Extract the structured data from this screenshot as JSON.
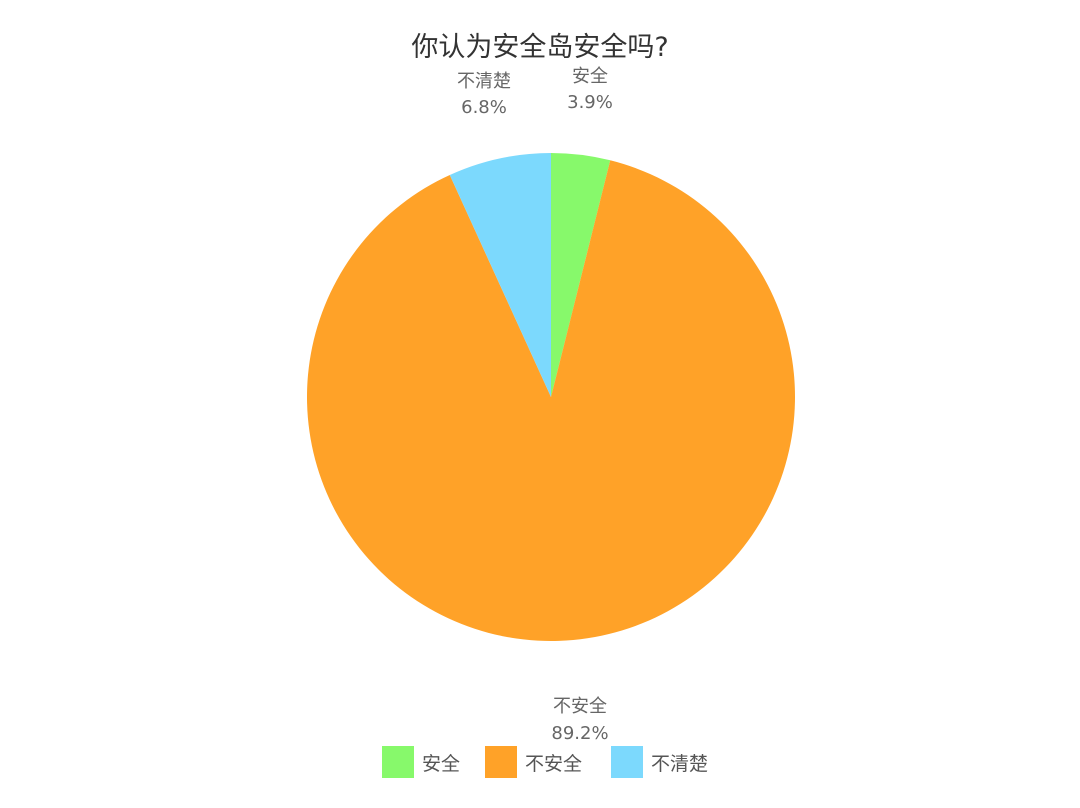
{
  "chart_data": {
    "type": "pie",
    "title": "你认为安全岛安全吗?",
    "start_angle": "top",
    "direction": "clockwise",
    "legend_position": "bottom",
    "slices": [
      {
        "label": "安全",
        "value": 3.9,
        "display": "3.9%",
        "color": "#87f96b"
      },
      {
        "label": "不安全",
        "value": 89.2,
        "display": "89.2%",
        "color": "#ffa228"
      },
      {
        "label": "不清楚",
        "value": 6.8,
        "display": "6.8%",
        "color": "#7cd9fd"
      }
    ]
  }
}
